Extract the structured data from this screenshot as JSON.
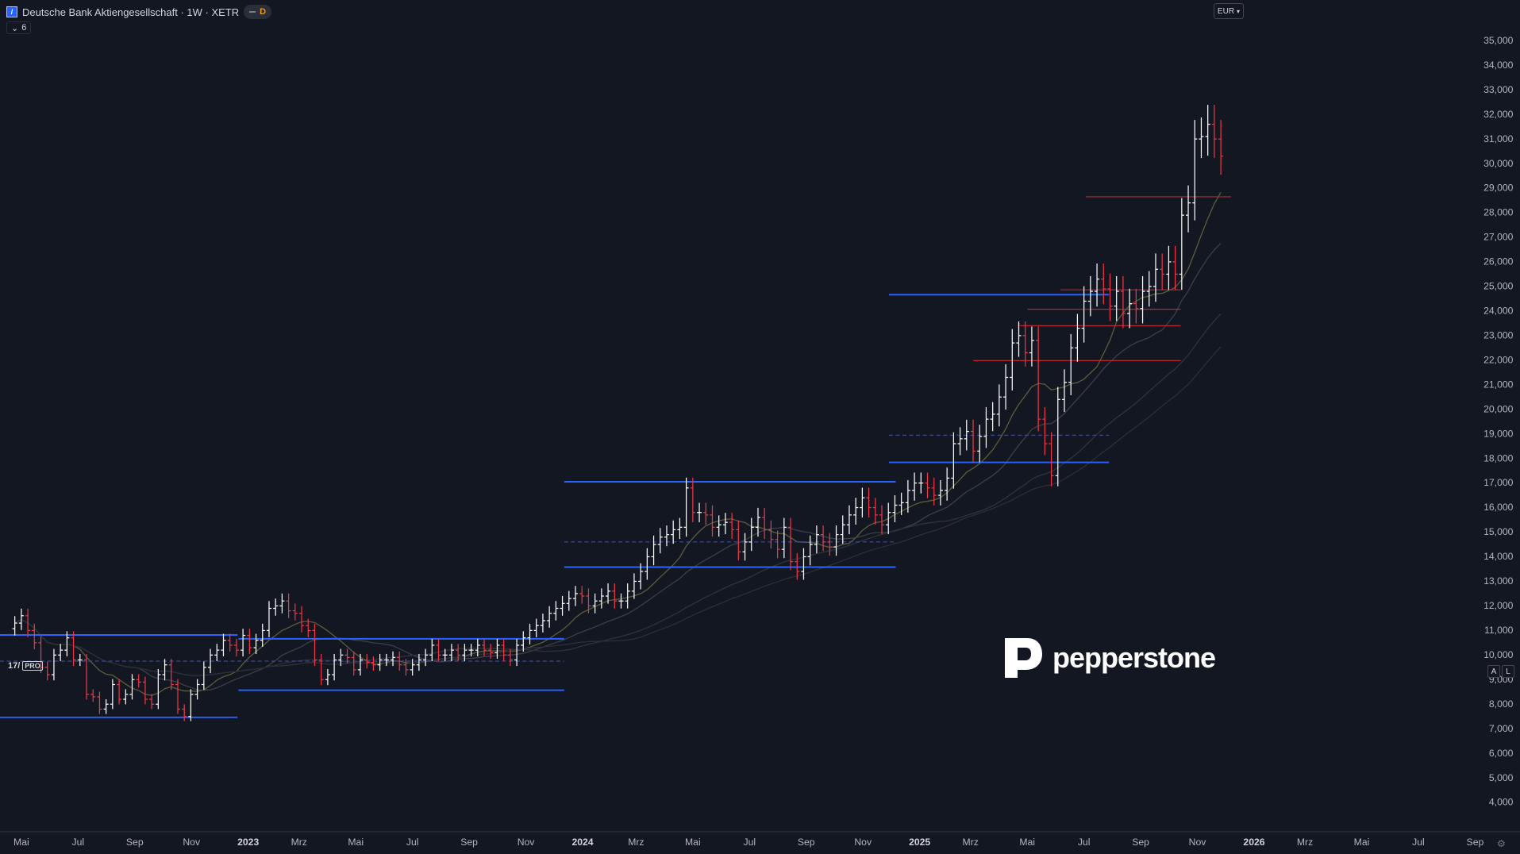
{
  "header": {
    "symbol_title": "Deutsche Bank Aktiengesellschaft · 1W · XETR",
    "flag": "D",
    "indicator_count": "6",
    "currency": "EUR"
  },
  "scale_buttons": {
    "auto": "A",
    "log": "L"
  },
  "branding": {
    "tv_pro": "PRO",
    "broker": "pepperstone"
  },
  "colors": {
    "background": "#131722",
    "up_bar": "#ffffff",
    "down_bar": "#f23645",
    "level_line": "#2962ff",
    "resistance_line": "#b22833",
    "ma_colors": [
      "#5c5a3c",
      "#3b3e47",
      "#2f323b",
      "#2b2e37"
    ]
  },
  "chart_data": {
    "type": "bar",
    "title": "Deutsche Bank Aktiengesellschaft · 1W · XETR",
    "y_axis": {
      "ticks": [
        4000,
        5000,
        6000,
        7000,
        8000,
        9000,
        10000,
        11000,
        12000,
        13000,
        14000,
        15000,
        16000,
        17000,
        18000,
        19000,
        20000,
        21000,
        22000,
        23000,
        24000,
        25000,
        26000,
        27000,
        28000,
        29000,
        30000,
        31000,
        32000,
        33000,
        34000,
        35000
      ],
      "tick_labels": [
        "4,000",
        "5,000",
        "6,000",
        "7,000",
        "8,000",
        "9,000",
        "10,000",
        "11,000",
        "12,000",
        "13,000",
        "14,000",
        "15,000",
        "16,000",
        "17,000",
        "18,000",
        "19,000",
        "20,000",
        "21,000",
        "22,000",
        "23,000",
        "24,000",
        "25,000",
        "26,000",
        "27,000",
        "28,000",
        "29,000",
        "30,000",
        "31,000",
        "32,000",
        "33,000",
        "34,000",
        "35,000"
      ],
      "ylim": [
        3500,
        36000
      ]
    },
    "x_axis": {
      "labels": [
        "Mai",
        "Jul",
        "Sep",
        "Nov",
        "2023",
        "Mrz",
        "Mai",
        "Jul",
        "Sep",
        "Nov",
        "2024",
        "Mrz",
        "Mai",
        "Jul",
        "Sep",
        "Nov",
        "2025",
        "Mrz",
        "Mai",
        "Jul",
        "Sep",
        "Nov",
        "2026",
        "Mrz",
        "Mai",
        "Jul",
        "Sep"
      ],
      "label_weeks": [
        0,
        8.7,
        17.4,
        26.1,
        34.8,
        42.6,
        51.3,
        60,
        68.7,
        77.4,
        86.1,
        94.3,
        103,
        111.7,
        120.4,
        129.1,
        137.8,
        145.6,
        154.3,
        163,
        171.7,
        180.4,
        189.1,
        196.9,
        205.6,
        214.3,
        223
      ],
      "bold": [
        "2023",
        "2024",
        "2025",
        "2026"
      ]
    },
    "bars_start_week": -1,
    "closes": [
      11300,
      11600,
      11000,
      10500,
      9500,
      9200,
      10000,
      10200,
      10700,
      9800,
      9800,
      8400,
      8300,
      7800,
      8000,
      8800,
      8200,
      8400,
      9000,
      8900,
      8200,
      8000,
      9200,
      9600,
      8800,
      7800,
      7500,
      8400,
      8800,
      9500,
      10000,
      10200,
      10600,
      10400,
      10200,
      10800,
      10300,
      10600,
      11000,
      11900,
      12000,
      12200,
      11800,
      11700,
      11200,
      11000,
      9800,
      9000,
      9200,
      9800,
      10000,
      9900,
      9400,
      9800,
      9700,
      9600,
      9800,
      9800,
      9900,
      9600,
      9400,
      9600,
      9800,
      10000,
      10400,
      10000,
      10000,
      10200,
      10000,
      10200,
      10200,
      10400,
      10200,
      10100,
      10400,
      10000,
      9800,
      10400,
      10700,
      11000,
      11200,
      11400,
      11700,
      11900,
      12100,
      12300,
      12500,
      12400,
      12000,
      12200,
      12400,
      12600,
      12200,
      12200,
      12600,
      13000,
      13400,
      14000,
      14500,
      14800,
      14900,
      15100,
      15200,
      16800,
      15800,
      15800,
      15700,
      15200,
      15300,
      15400,
      15100,
      14200,
      14600,
      15200,
      15600,
      15100,
      14700,
      14300,
      15200,
      13800,
      13400,
      14000,
      14500,
      14900,
      14600,
      14400,
      14900,
      15300,
      15700,
      16000,
      16400,
      16000,
      15700,
      15300,
      15800,
      16100,
      16200,
      16700,
      17000,
      17000,
      16800,
      16500,
      16700,
      17200,
      18600,
      18800,
      19100,
      18300,
      18900,
      19600,
      19800,
      20500,
      21300,
      22700,
      23000,
      22300,
      22800,
      19600,
      18600,
      17300,
      20400,
      21100,
      22500,
      23300,
      24400,
      24800,
      25300,
      24900,
      24200,
      24800,
      23900,
      24300,
      24100,
      24800,
      25000,
      25700,
      25500,
      26000,
      25500,
      27900,
      28400,
      31000,
      31100,
      31600,
      31000,
      30300
    ]
  }
}
